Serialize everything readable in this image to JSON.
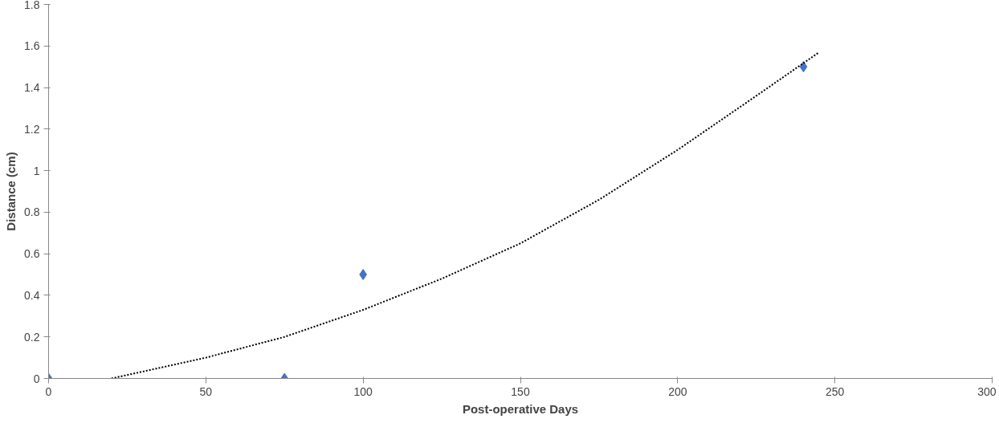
{
  "chart_data": {
    "type": "scatter",
    "xlabel": "Post-operative Days",
    "ylabel": "Distance (cm)",
    "xlim": [
      0,
      300
    ],
    "xticks": [
      0,
      50,
      100,
      150,
      200,
      250,
      300
    ],
    "ylim": [
      0,
      1.8
    ],
    "yticks": [
      0,
      0.2,
      0.4,
      0.6,
      0.8,
      1,
      1.2,
      1.4,
      1.6,
      1.8
    ],
    "grid": false,
    "series": [
      {
        "color": "#4472c4",
        "marker": "diamond",
        "x": [
          0,
          75,
          100,
          240
        ],
        "values": [
          0,
          0,
          0.5,
          1.5
        ]
      },
      {
        "type": "line",
        "color": "#000000",
        "line_style": "dotted",
        "marker": "none",
        "x": [
          20,
          50,
          75,
          100,
          125,
          150,
          175,
          200,
          225,
          245
        ],
        "values": [
          0,
          0.1,
          0.2,
          0.33,
          0.48,
          0.65,
          0.86,
          1.1,
          1.36,
          1.57
        ]
      }
    ]
  }
}
